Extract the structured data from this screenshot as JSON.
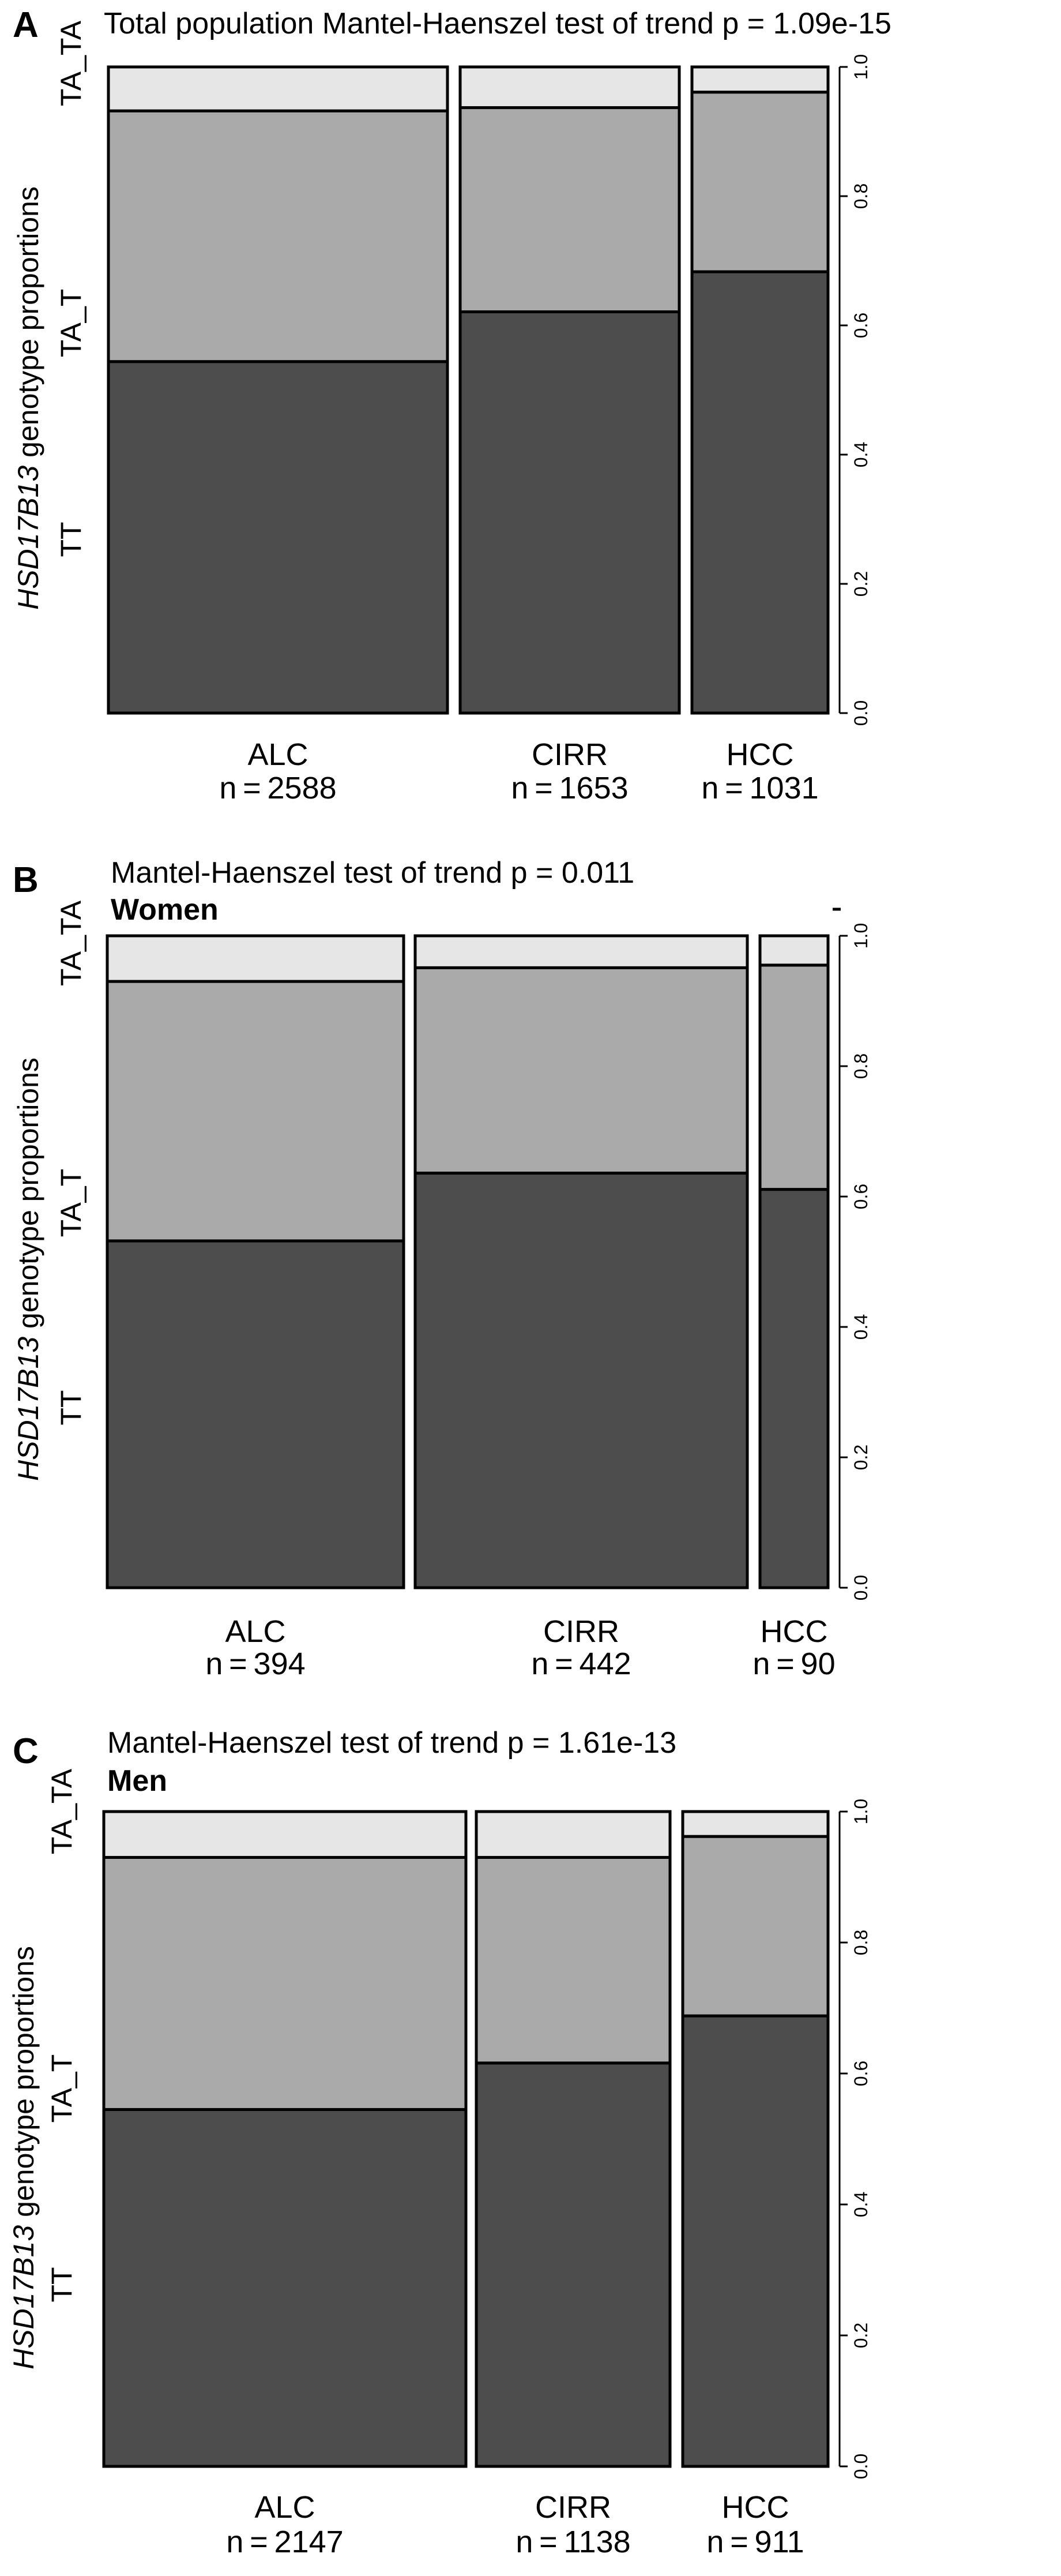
{
  "figure": {
    "ylabel_gene": "HSD17B13",
    "ylabel_rest": " genotype proportions"
  },
  "chart_data": [
    {
      "type": "bar",
      "panel_label": "A",
      "title": "Total population Mantel-Haenszel test of trend p = 1.09e-15",
      "subtitle": "",
      "ylabel": "HSD17B13 genotype proportions",
      "ylim": [
        0,
        1
      ],
      "yticks": [
        "0.0",
        "0.2",
        "0.4",
        "0.6",
        "0.8",
        "1.0"
      ],
      "genotypes": [
        "TT",
        "TA_T",
        "TA_TA"
      ],
      "categories": [
        "ALC",
        "CIRR",
        "HCC"
      ],
      "counts": [
        "n = 2588",
        "n = 1653",
        "n = 1031"
      ],
      "n": [
        2588,
        1653,
        1031
      ],
      "series": [
        {
          "values": [
            0.544,
            0.621,
            0.683
          ]
        },
        {
          "values": [
            0.388,
            0.316,
            0.278
          ]
        },
        {
          "values": [
            0.068,
            0.063,
            0.039
          ]
        }
      ],
      "colors": [
        "#4d4d4d",
        "#aaaaaa",
        "#e6e6e6"
      ]
    },
    {
      "type": "bar",
      "panel_label": "B",
      "title": "Mantel-Haenszel test of trend p = 0.011",
      "subtitle": "Women",
      "ylabel": "HSD17B13 genotype proportions",
      "ylim": [
        0,
        1
      ],
      "yticks": [
        "0.0",
        "0.2",
        "0.4",
        "0.6",
        "0.8",
        "1.0"
      ],
      "genotypes": [
        "TT",
        "TA_T",
        "TA_TA"
      ],
      "categories": [
        "ALC",
        "CIRR",
        "HCC"
      ],
      "counts": [
        "n = 394",
        "n = 442",
        "n = 90"
      ],
      "n": [
        394,
        442,
        90
      ],
      "series": [
        {
          "values": [
            0.532,
            0.636,
            0.611
          ]
        },
        {
          "values": [
            0.398,
            0.315,
            0.344
          ]
        },
        {
          "values": [
            0.07,
            0.049,
            0.045
          ]
        }
      ],
      "colors": [
        "#4d4d4d",
        "#aaaaaa",
        "#e6e6e6"
      ]
    },
    {
      "type": "bar",
      "panel_label": "C",
      "title": "Mantel-Haenszel test of trend p = 1.61e-13",
      "subtitle": "Men",
      "ylabel": "HSD17B13 genotype proportions",
      "ylim": [
        0,
        1
      ],
      "yticks": [
        "0.0",
        "0.2",
        "0.4",
        "0.6",
        "0.8",
        "1.0"
      ],
      "genotypes": [
        "TT",
        "TA_T",
        "TA_TA"
      ],
      "categories": [
        "ALC",
        "CIRR",
        "HCC"
      ],
      "counts": [
        "n = 2147",
        "n = 1138",
        "n = 911"
      ],
      "n": [
        2147,
        1138,
        911
      ],
      "series": [
        {
          "values": [
            0.545,
            0.616,
            0.688
          ]
        },
        {
          "values": [
            0.385,
            0.314,
            0.274
          ]
        },
        {
          "values": [
            0.07,
            0.07,
            0.038
          ]
        }
      ],
      "colors": [
        "#4d4d4d",
        "#aaaaaa",
        "#e6e6e6"
      ]
    }
  ]
}
